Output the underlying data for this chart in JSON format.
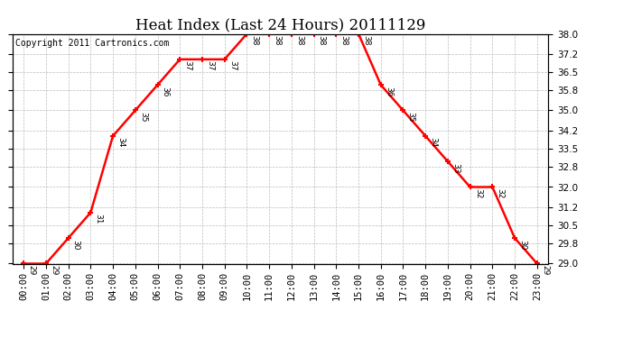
{
  "title": "Heat Index (Last 24 Hours) 20111129",
  "copyright": "Copyright 2011 Cartronics.com",
  "hours": [
    "00:00",
    "01:00",
    "02:00",
    "03:00",
    "04:00",
    "05:00",
    "06:00",
    "07:00",
    "08:00",
    "09:00",
    "10:00",
    "11:00",
    "12:00",
    "13:00",
    "14:00",
    "15:00",
    "16:00",
    "17:00",
    "18:00",
    "19:00",
    "20:00",
    "21:00",
    "22:00",
    "23:00"
  ],
  "values": [
    29,
    29,
    30,
    31,
    34,
    35,
    36,
    37,
    37,
    37,
    38,
    38,
    38,
    38,
    38,
    38,
    36,
    35,
    34,
    33,
    32,
    32,
    30,
    29
  ],
  "line_color": "#FF0000",
  "marker": "+",
  "marker_color": "#FF0000",
  "marker_size": 5,
  "line_width": 1.8,
  "ylim": [
    29.0,
    38.0
  ],
  "yticks": [
    29.0,
    29.8,
    30.5,
    31.2,
    32.0,
    32.8,
    33.5,
    34.2,
    35.0,
    35.8,
    36.5,
    37.2,
    38.0
  ],
  "grid_color": "#bbbbbb",
  "bg_color": "#ffffff",
  "label_fontsize": 7.5,
  "title_fontsize": 12,
  "copyright_fontsize": 7,
  "annot_fontsize": 6.5
}
